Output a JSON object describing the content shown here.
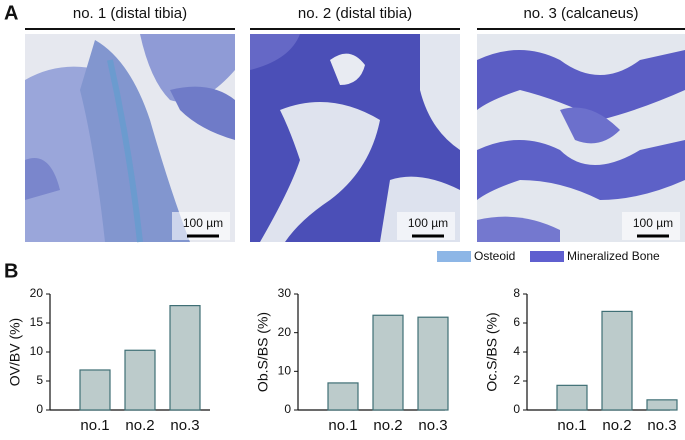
{
  "panel_labels": [
    "A",
    "B"
  ],
  "images": {
    "titles": [
      "no. 1 (distal tibia)",
      "no. 2 (distal tibia)",
      "no. 3 (calcaneus)"
    ],
    "scale_bar_label": "100 µm",
    "legend": [
      {
        "label": "Osteoid",
        "color": "#8db6e6"
      },
      {
        "label": "Mineralized Bone",
        "color": "#5f5fcf"
      }
    ]
  },
  "chart_data": [
    {
      "type": "bar",
      "ylabel": "OV/BV (%)",
      "categories": [
        "no.1",
        "no.2",
        "no.3"
      ],
      "values": [
        6.9,
        10.3,
        18
      ],
      "color": "#bccbcb",
      "edgecolor": "#3f6f75",
      "ylim": [
        0,
        20
      ],
      "yticks": [
        0,
        5,
        10,
        15,
        20
      ]
    },
    {
      "type": "bar",
      "ylabel": "Ob.S/BS (%)",
      "categories": [
        "no.1",
        "no.2",
        "no.3"
      ],
      "values": [
        7,
        24.5,
        24
      ],
      "color": "#bccbcb",
      "edgecolor": "#3f6f75",
      "ylim": [
        0,
        30
      ],
      "yticks": [
        0,
        10,
        20,
        30
      ]
    },
    {
      "type": "bar",
      "ylabel": "Oc.S/BS (%)",
      "categories": [
        "no.1",
        "no.2",
        "no.3"
      ],
      "values": [
        1.7,
        6.8,
        0.7
      ],
      "color": "#bccbcb",
      "edgecolor": "#3f6f75",
      "ylim": [
        0,
        8
      ],
      "yticks": [
        0,
        2,
        4,
        6,
        8
      ]
    }
  ]
}
